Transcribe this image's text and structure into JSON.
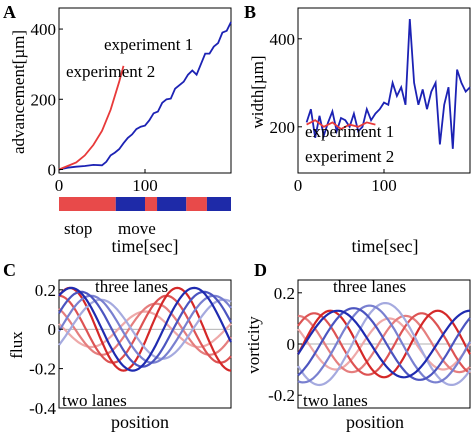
{
  "colors": {
    "exp1": "#1c22b4",
    "exp2": "#e83a3a",
    "stop": "#e84a4a",
    "move": "#1e2aa8",
    "three_dark": "#1f2bb0",
    "two_dark": "#d42828"
  },
  "figure": {
    "panels": {
      "A": {
        "letter": "A"
      },
      "B": {
        "letter": "B"
      },
      "C": {
        "letter": "C"
      },
      "D": {
        "letter": "D"
      }
    },
    "timeline": {
      "stop_label": "stop",
      "move_label": "move",
      "xlabel": "time[sec]"
    }
  },
  "chart_data": [
    {
      "panel": "A",
      "type": "line",
      "xlabel": "",
      "ylabel": "advancement[µm]",
      "xlim": [
        0,
        200
      ],
      "ylim": [
        -10,
        460
      ],
      "xticks": [
        "0",
        "100"
      ],
      "yticks": [
        "0",
        "200",
        "400"
      ],
      "legend": "top-left",
      "series": [
        {
          "name": "experiment 1",
          "x": [
            0,
            10,
            20,
            30,
            40,
            50,
            55,
            60,
            65,
            70,
            75,
            80,
            85,
            90,
            95,
            100,
            105,
            110,
            115,
            120,
            125,
            130,
            135,
            140,
            145,
            150,
            155,
            160,
            165,
            170,
            175,
            180,
            185,
            190,
            195,
            200
          ],
          "y": [
            0,
            5,
            8,
            10,
            13,
            12,
            22,
            40,
            48,
            58,
            75,
            90,
            100,
            115,
            122,
            125,
            140,
            160,
            165,
            190,
            200,
            202,
            230,
            240,
            250,
            270,
            282,
            270,
            300,
            330,
            330,
            350,
            360,
            390,
            395,
            420
          ]
        },
        {
          "name": "experiment 2",
          "x": [
            0,
            10,
            20,
            30,
            40,
            50,
            60,
            70,
            75
          ],
          "y": [
            0,
            10,
            20,
            40,
            70,
            110,
            170,
            250,
            295
          ]
        }
      ]
    },
    {
      "panel": "B",
      "type": "line",
      "xlabel": "time[sec]",
      "ylabel": "width[µm]",
      "xlim": [
        0,
        200
      ],
      "ylim": [
        95,
        470
      ],
      "xticks": [
        "0",
        "100"
      ],
      "yticks": [
        "200",
        "400"
      ],
      "legend": "bottom-left",
      "series": [
        {
          "name": "experiment 1",
          "x": [
            10,
            15,
            20,
            25,
            30,
            35,
            40,
            45,
            50,
            55,
            60,
            65,
            70,
            75,
            80,
            85,
            90,
            95,
            100,
            105,
            110,
            115,
            120,
            125,
            130,
            135,
            140,
            145,
            150,
            155,
            160,
            165,
            170,
            175,
            180,
            185,
            190,
            195,
            200
          ],
          "y": [
            210,
            240,
            175,
            225,
            180,
            210,
            235,
            190,
            220,
            215,
            200,
            230,
            190,
            200,
            240,
            215,
            230,
            240,
            255,
            250,
            300,
            270,
            290,
            250,
            445,
            300,
            250,
            285,
            240,
            280,
            300,
            160,
            250,
            290,
            150,
            330,
            300,
            280,
            290
          ]
        },
        {
          "name": "experiment 2",
          "x": [
            10,
            20,
            30,
            40,
            50,
            60,
            70,
            80,
            90
          ],
          "y": [
            205,
            215,
            200,
            210,
            195,
            205,
            200,
            210,
            205
          ]
        }
      ]
    },
    {
      "panel": "C",
      "type": "line",
      "xlabel": "position",
      "ylabel": "flux",
      "ylim": [
        -0.4,
        0.25
      ],
      "yticks": [
        "0.2",
        "0",
        "-0.2",
        "-0.4"
      ],
      "annotations": [
        "three lanes",
        "two lanes"
      ],
      "series": [
        {
          "group": "three lanes",
          "amplitude": 0.21,
          "phase": 0.0
        },
        {
          "group": "three lanes",
          "amplitude": 0.19,
          "phase": 0.08
        },
        {
          "group": "three lanes",
          "amplitude": 0.17,
          "phase": 0.16
        },
        {
          "group": "three lanes",
          "amplitude": 0.15,
          "phase": 0.24
        },
        {
          "group": "two lanes",
          "amplitude": 0.21,
          "phase": 0.0
        },
        {
          "group": "two lanes",
          "amplitude": 0.17,
          "phase": -0.1
        },
        {
          "group": "two lanes",
          "amplitude": 0.13,
          "phase": -0.2
        },
        {
          "group": "two lanes",
          "amplitude": 0.09,
          "phase": -0.3
        }
      ]
    },
    {
      "panel": "D",
      "type": "line",
      "xlabel": "position",
      "ylabel": "vorticity",
      "ylim": [
        -0.25,
        0.25
      ],
      "yticks": [
        "0.2",
        "0",
        "-0.2"
      ],
      "annotations": [
        "three lanes",
        "two lanes"
      ],
      "series": [
        {
          "group": "three lanes",
          "amplitude": 0.13,
          "phase": 0.0
        },
        {
          "group": "three lanes",
          "amplitude": 0.14,
          "phase": 0.12
        },
        {
          "group": "three lanes",
          "amplitude": 0.15,
          "phase": 0.24
        },
        {
          "group": "three lanes",
          "amplitude": 0.16,
          "phase": 0.36
        },
        {
          "group": "two lanes",
          "amplitude": 0.13,
          "phase": 0.0
        },
        {
          "group": "two lanes",
          "amplitude": 0.12,
          "phase": -0.15
        },
        {
          "group": "two lanes",
          "amplitude": 0.11,
          "phase": -0.3
        },
        {
          "group": "two lanes",
          "amplitude": 0.1,
          "phase": -0.45
        }
      ]
    }
  ]
}
